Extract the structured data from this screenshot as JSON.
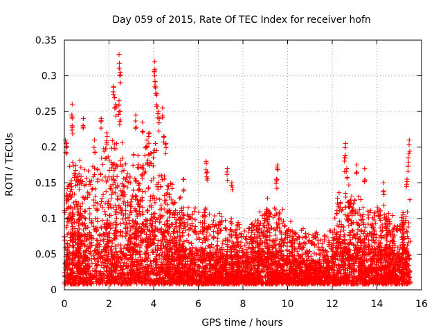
{
  "chart_data": {
    "type": "scatter",
    "title": "Day 059 of 2015, Rate Of TEC Index for receiver hofn",
    "xlabel": "GPS time / hours",
    "ylabel": "ROTI / TECUs",
    "xlim": [
      0,
      16
    ],
    "ylim": [
      0,
      0.35
    ],
    "xticks": [
      0,
      2,
      4,
      6,
      8,
      10,
      12,
      14,
      16
    ],
    "yticks": [
      0,
      0.05,
      0.1,
      0.15,
      0.2,
      0.25,
      0.3,
      0.35
    ],
    "xtick_labels": [
      "0",
      "2",
      "4",
      "6",
      "8",
      "10",
      "12",
      "14",
      "16"
    ],
    "ytick_labels": [
      "0",
      "0.05",
      "0.1",
      "0.15",
      "0.2",
      "0.25",
      "0.3",
      "0.35"
    ],
    "grid": true,
    "marker": "plus",
    "marker_color": "#ff0000",
    "data_x_range": [
      0,
      15.5
    ],
    "envelope": {
      "x": [
        0,
        0.25,
        0.5,
        1,
        1.5,
        2,
        2.5,
        3,
        3.5,
        4,
        4.5,
        5,
        5.5,
        6,
        6.5,
        7,
        7.5,
        8,
        8.5,
        9,
        9.5,
        10,
        10.5,
        11,
        11.5,
        12,
        12.5,
        13,
        13.5,
        14,
        14.5,
        15,
        15.5
      ],
      "typical_max": [
        0.12,
        0.15,
        0.16,
        0.14,
        0.16,
        0.18,
        0.17,
        0.15,
        0.17,
        0.19,
        0.14,
        0.11,
        0.1,
        0.1,
        0.09,
        0.09,
        0.08,
        0.08,
        0.08,
        0.1,
        0.12,
        0.08,
        0.07,
        0.07,
        0.06,
        0.08,
        0.13,
        0.11,
        0.1,
        0.11,
        0.09,
        0.08,
        0.11
      ]
    },
    "notable_points": [
      {
        "x": 0.05,
        "y": 0.21
      },
      {
        "x": 0.1,
        "y": 0.205
      },
      {
        "x": 0.35,
        "y": 0.26
      },
      {
        "x": 0.35,
        "y": 0.23
      },
      {
        "x": 0.85,
        "y": 0.24
      },
      {
        "x": 1.35,
        "y": 0.21
      },
      {
        "x": 1.65,
        "y": 0.24
      },
      {
        "x": 1.9,
        "y": 0.22
      },
      {
        "x": 2.2,
        "y": 0.285
      },
      {
        "x": 2.25,
        "y": 0.27
      },
      {
        "x": 2.3,
        "y": 0.26
      },
      {
        "x": 2.45,
        "y": 0.33
      },
      {
        "x": 2.5,
        "y": 0.305
      },
      {
        "x": 2.45,
        "y": 0.265
      },
      {
        "x": 2.5,
        "y": 0.25
      },
      {
        "x": 3.2,
        "y": 0.245
      },
      {
        "x": 3.5,
        "y": 0.235
      },
      {
        "x": 3.7,
        "y": 0.21
      },
      {
        "x": 3.8,
        "y": 0.22
      },
      {
        "x": 4.05,
        "y": 0.32
      },
      {
        "x": 4.05,
        "y": 0.3
      },
      {
        "x": 4.1,
        "y": 0.285
      },
      {
        "x": 4.15,
        "y": 0.275
      },
      {
        "x": 4.2,
        "y": 0.25
      },
      {
        "x": 4.25,
        "y": 0.24
      },
      {
        "x": 4.4,
        "y": 0.255
      },
      {
        "x": 4.45,
        "y": 0.215
      },
      {
        "x": 4.55,
        "y": 0.205
      },
      {
        "x": 5.35,
        "y": 0.155
      },
      {
        "x": 6.35,
        "y": 0.18
      },
      {
        "x": 6.4,
        "y": 0.165
      },
      {
        "x": 7.3,
        "y": 0.17
      },
      {
        "x": 7.5,
        "y": 0.15
      },
      {
        "x": 9.55,
        "y": 0.175
      },
      {
        "x": 9.5,
        "y": 0.155
      },
      {
        "x": 12.55,
        "y": 0.185
      },
      {
        "x": 12.6,
        "y": 0.205
      },
      {
        "x": 12.65,
        "y": 0.17
      },
      {
        "x": 13.1,
        "y": 0.175
      },
      {
        "x": 13.45,
        "y": 0.17
      },
      {
        "x": 14.3,
        "y": 0.15
      },
      {
        "x": 15.45,
        "y": 0.21
      },
      {
        "x": 15.4,
        "y": 0.185
      },
      {
        "x": 15.35,
        "y": 0.155
      }
    ]
  }
}
